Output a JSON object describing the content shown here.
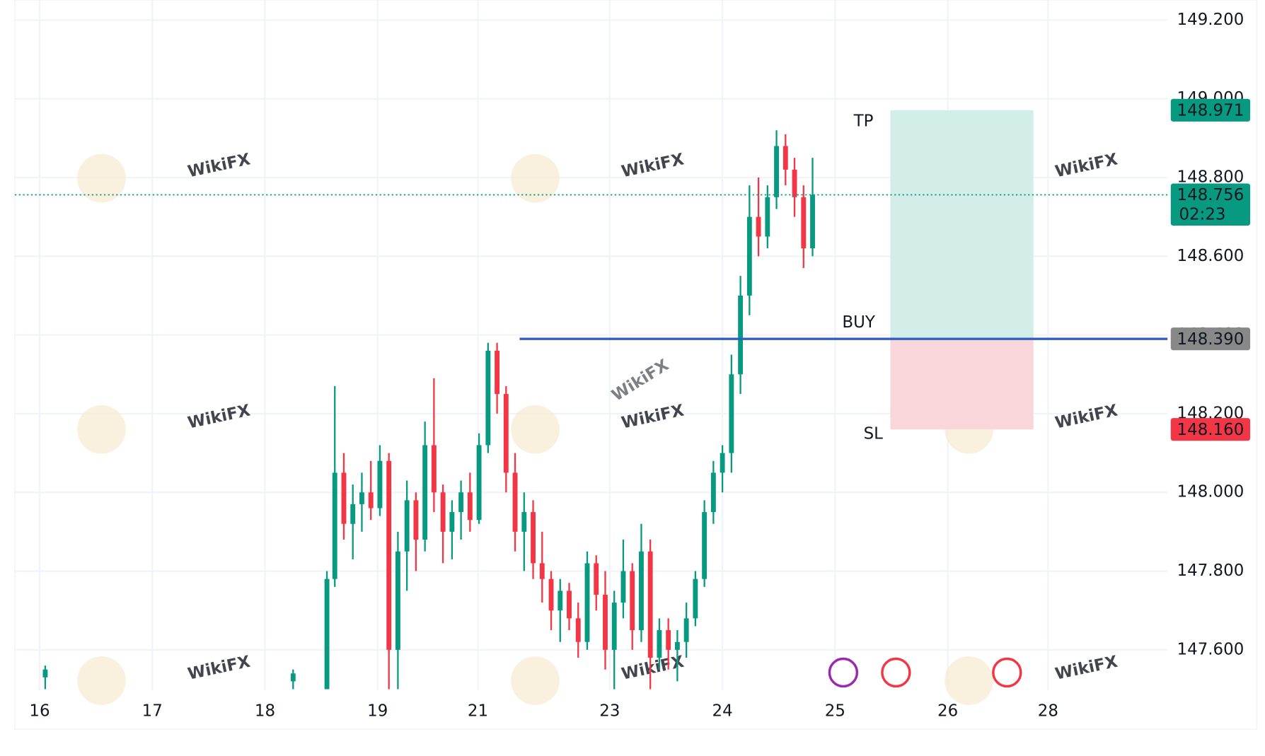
{
  "chart_data": {
    "type": "candlestick",
    "watermark": "WikiFX",
    "up_color": "#089981",
    "down_color": "#f23645",
    "x": [
      0.05,
      2.25,
      2.55,
      2.62,
      2.7,
      2.78,
      2.86,
      2.94,
      3.02,
      3.1,
      3.18,
      3.26,
      3.34,
      3.42,
      3.5,
      3.58,
      3.66,
      3.74,
      3.82,
      3.9,
      3.98,
      4.06,
      4.14,
      4.22,
      4.3,
      4.38,
      4.46,
      4.54,
      4.62,
      4.7,
      4.78,
      4.86,
      4.94,
      5.02,
      5.1,
      5.18,
      5.26,
      5.34,
      5.42,
      5.5,
      5.58,
      5.66,
      5.74,
      5.82,
      5.9,
      5.98,
      6.06,
      6.14,
      6.22,
      6.3,
      6.38,
      6.46,
      6.54,
      6.62,
      6.7,
      6.78,
      6.86
    ],
    "open": [
      147.53,
      147.52,
      147.5,
      147.78,
      148.05,
      147.92,
      147.97,
      148.0,
      147.96,
      148.08,
      147.6,
      147.85,
      147.98,
      147.88,
      148.12,
      148.0,
      147.9,
      147.95,
      148.0,
      147.93,
      148.12,
      148.36,
      148.25,
      148.05,
      147.9,
      147.95,
      147.82,
      147.78,
      147.7,
      147.75,
      147.68,
      147.62,
      147.82,
      147.74,
      147.6,
      147.72,
      147.8,
      147.65,
      147.85,
      147.58,
      147.65,
      147.6,
      147.62,
      147.68,
      147.78,
      147.95,
      148.05,
      148.1,
      148.3,
      148.5,
      148.7,
      148.65,
      148.75,
      148.88,
      148.82,
      148.75,
      148.62
    ],
    "high": [
      147.56,
      147.55,
      147.8,
      148.27,
      148.1,
      148.02,
      148.05,
      148.08,
      148.12,
      148.1,
      147.9,
      148.03,
      148.0,
      148.18,
      148.29,
      148.02,
      147.98,
      148.03,
      148.05,
      148.15,
      148.38,
      148.38,
      148.27,
      148.1,
      148.0,
      147.98,
      147.9,
      147.8,
      147.78,
      147.77,
      147.72,
      147.85,
      147.84,
      147.8,
      147.75,
      147.88,
      147.82,
      147.92,
      147.88,
      147.68,
      147.68,
      147.65,
      147.72,
      147.8,
      147.98,
      148.08,
      148.12,
      148.35,
      148.55,
      148.78,
      148.8,
      148.78,
      148.92,
      148.91,
      148.85,
      148.78,
      148.85
    ],
    "low": [
      147.5,
      147.5,
      147.5,
      147.76,
      147.88,
      147.83,
      147.9,
      147.93,
      147.94,
      147.5,
      147.5,
      147.75,
      147.8,
      147.85,
      147.95,
      147.82,
      147.83,
      147.88,
      147.9,
      147.92,
      148.1,
      148.2,
      148.0,
      147.85,
      147.8,
      147.78,
      147.72,
      147.65,
      147.62,
      147.65,
      147.58,
      147.6,
      147.7,
      147.55,
      147.5,
      147.68,
      147.6,
      147.62,
      147.5,
      147.55,
      147.55,
      147.52,
      147.58,
      147.66,
      147.76,
      147.92,
      148.0,
      148.05,
      148.25,
      148.45,
      148.6,
      148.62,
      148.72,
      148.78,
      148.7,
      148.57,
      148.6
    ],
    "close": [
      147.55,
      147.54,
      147.78,
      148.05,
      147.92,
      147.97,
      148.0,
      147.96,
      148.08,
      147.6,
      147.85,
      147.98,
      147.88,
      148.12,
      148.0,
      147.9,
      147.95,
      148.0,
      147.93,
      148.12,
      148.36,
      148.25,
      148.05,
      147.9,
      147.95,
      147.82,
      147.78,
      147.7,
      147.75,
      147.68,
      147.62,
      147.82,
      147.74,
      147.6,
      147.72,
      147.8,
      147.65,
      147.85,
      147.58,
      147.65,
      147.6,
      147.62,
      147.68,
      147.78,
      147.95,
      148.05,
      148.1,
      148.3,
      148.5,
      148.7,
      148.65,
      148.75,
      148.88,
      148.82,
      148.75,
      148.62,
      148.756
    ],
    "xlim": [
      -0.22,
      10.01
    ],
    "xticks": [
      {
        "value": 0,
        "label": "16"
      },
      {
        "value": 1,
        "label": "17"
      },
      {
        "value": 2,
        "label": "18"
      },
      {
        "value": 3,
        "label": "19"
      },
      {
        "value": 3.89,
        "label": "21"
      },
      {
        "value": 5.06,
        "label": "23"
      },
      {
        "value": 6.06,
        "label": "24"
      },
      {
        "value": 7.06,
        "label": "25"
      },
      {
        "value": 8.06,
        "label": "26"
      },
      {
        "value": 8.95,
        "label": "28"
      }
    ],
    "ylim": [
      147.497,
      149.251
    ],
    "yticks": [
      {
        "value": 147.6,
        "label": "147.600"
      },
      {
        "value": 147.8,
        "label": "147.800"
      },
      {
        "value": 148,
        "label": "148.000"
      },
      {
        "value": 148.2,
        "label": "148.200"
      },
      {
        "value": 148.4,
        "label": "148.400"
      },
      {
        "value": 148.6,
        "label": "148.600"
      },
      {
        "value": 148.8,
        "label": "148.800"
      },
      {
        "value": 149,
        "label": "149.000"
      },
      {
        "value": 149.2,
        "label": "149.200"
      }
    ],
    "grid": true,
    "position": {
      "entry": {
        "value": 148.39,
        "label": "148.390"
      },
      "take_profit": 148.971,
      "stop_loss": {
        "value": 148.16,
        "label": "148.160"
      },
      "entry_line_start": 4.26,
      "box_start": 7.55,
      "box_end": 8.82,
      "tp_text": "TP",
      "entry_text": "BUY",
      "sl_text": "SL",
      "tp_color": "#d3eee8",
      "sl_color": "#f9d6d9",
      "entry_color": "#2f5fc4",
      "entry_tag_color": "#888888"
    },
    "last_price": 148.756,
    "countdown": "02:23",
    "last_color": "#089981"
  }
}
